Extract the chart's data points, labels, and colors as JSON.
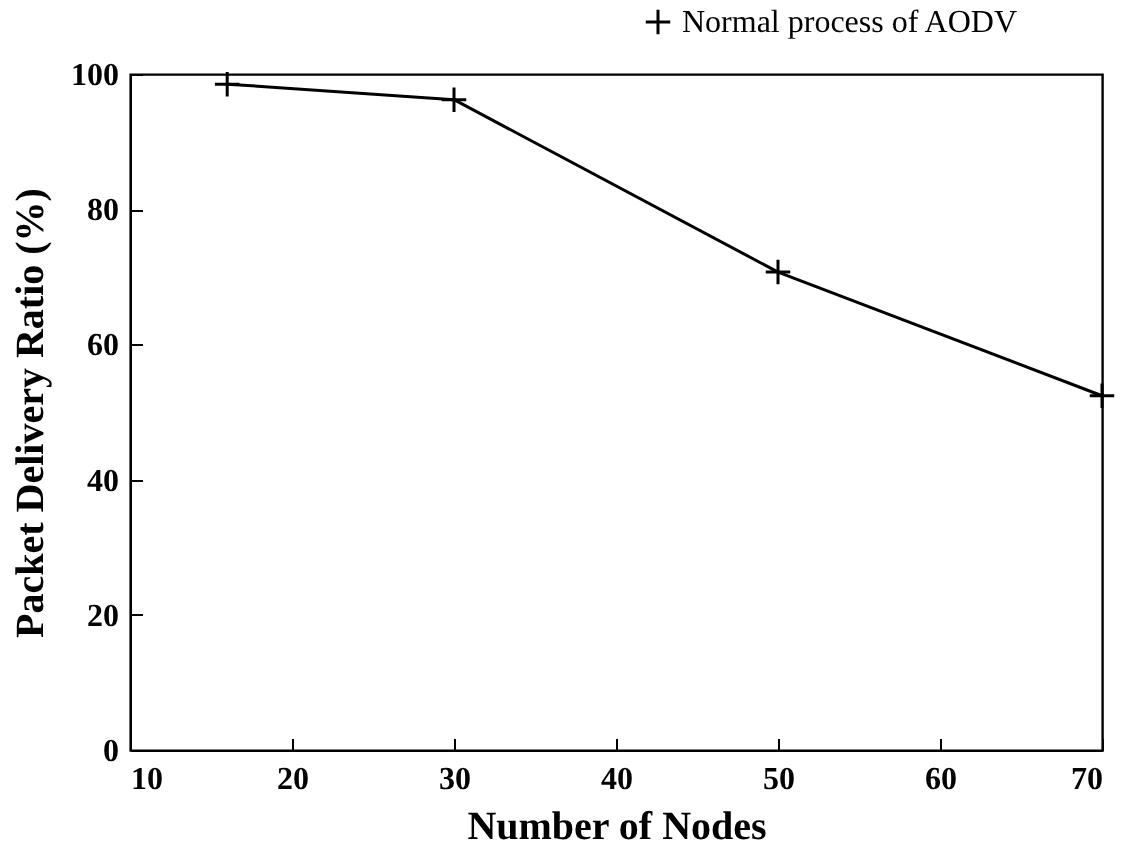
{
  "chart_data": {
    "type": "line",
    "xlabel": "Number of Nodes",
    "ylabel": "Packet Delivery Ratio (%)",
    "x": [
      16,
      30,
      50,
      70
    ],
    "series": [
      {
        "name": "Normal process of AODV",
        "color": "#000000",
        "values": [
          98.5,
          96.2,
          70.7,
          52.4
        ]
      }
    ],
    "xlim": [
      10,
      70
    ],
    "xticks": [
      10,
      20,
      30,
      40,
      50,
      60,
      70
    ],
    "ylim": [
      0,
      100
    ],
    "yticks": [
      0,
      20,
      40,
      60,
      80,
      100
    ],
    "grid": false,
    "legend": "top right",
    "marker": "cross",
    "line_style": "solid"
  }
}
